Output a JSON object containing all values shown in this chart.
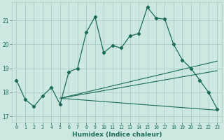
{
  "xlabel": "Humidex (Indice chaleur)",
  "bg_color": "#cce8e0",
  "grid_color": "#aaccc4",
  "line_color": "#1a6b5a",
  "xlim": [
    -0.5,
    23.5
  ],
  "ylim": [
    16.75,
    21.75
  ],
  "xticks": [
    0,
    1,
    2,
    3,
    4,
    5,
    6,
    7,
    8,
    9,
    10,
    11,
    12,
    13,
    14,
    15,
    16,
    17,
    18,
    19,
    20,
    21,
    22,
    23
  ],
  "yticks": [
    17,
    18,
    19,
    20,
    21
  ],
  "line1_x": [
    0,
    1,
    2,
    3,
    4,
    5,
    6,
    7,
    8,
    9,
    10,
    11,
    12,
    13,
    14,
    15,
    16,
    17,
    18,
    19,
    20,
    21,
    22,
    23
  ],
  "line1_y": [
    18.5,
    17.7,
    17.4,
    17.85,
    18.2,
    17.5,
    18.85,
    19.0,
    20.5,
    21.15,
    19.65,
    19.95,
    19.85,
    20.35,
    20.45,
    21.55,
    21.1,
    21.05,
    20.0,
    19.35,
    19.0,
    18.5,
    18.0,
    17.3
  ],
  "line2_x": [
    5,
    23
  ],
  "line2_y": [
    17.75,
    19.3
  ],
  "line3_x": [
    5,
    23
  ],
  "line3_y": [
    17.75,
    17.25
  ],
  "line4_x": [
    5,
    23
  ],
  "line4_y": [
    17.75,
    18.9
  ]
}
